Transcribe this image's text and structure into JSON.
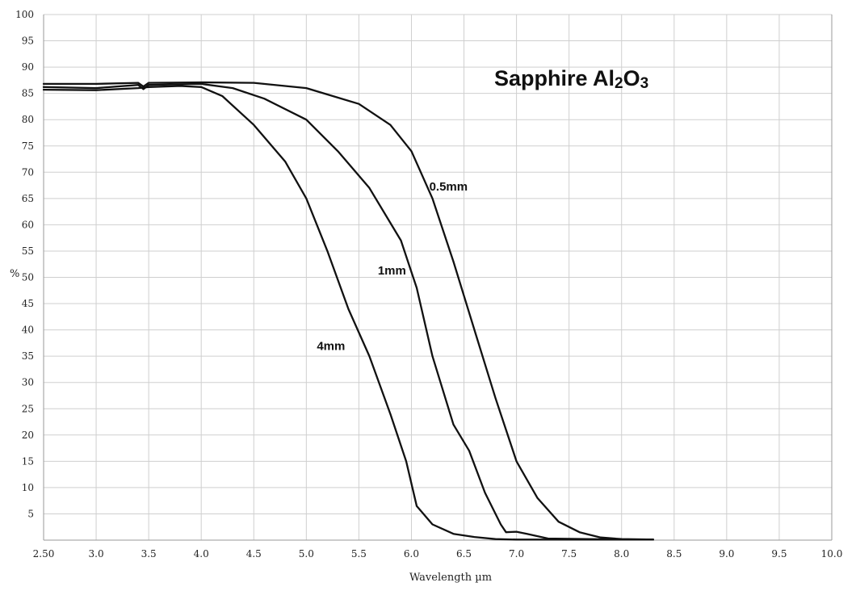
{
  "chart_data": {
    "type": "line",
    "title": "Sapphire Al2O3",
    "title_parts": {
      "main": "Sapphire Al",
      "sub1": "2",
      "mid": "O",
      "sub2": "3"
    },
    "xlabel": "Wavelength µm",
    "ylabel": "%",
    "xlim": [
      2.5,
      10.0
    ],
    "ylim": [
      0,
      100
    ],
    "grid": true,
    "legend": "none",
    "x_ticks": [
      "2.50",
      "3.0",
      "3.5",
      "4.0",
      "4.5",
      "5.0",
      "5.5",
      "6.0",
      "6.5",
      "7.0",
      "7.5",
      "8.0",
      "8.5",
      "9.0",
      "9.5",
      "10.0"
    ],
    "y_ticks": [
      "5",
      "10",
      "15",
      "20",
      "25",
      "30",
      "35",
      "40",
      "45",
      "50",
      "55",
      "60",
      "65",
      "70",
      "75",
      "80",
      "85",
      "90",
      "95",
      "100"
    ],
    "series": [
      {
        "name": "0.5mm",
        "points": [
          [
            2.5,
            86.8
          ],
          [
            3.0,
            86.8
          ],
          [
            3.4,
            87.0
          ],
          [
            3.45,
            86.3
          ],
          [
            3.5,
            87.0
          ],
          [
            4.0,
            87.1
          ],
          [
            4.5,
            87.0
          ],
          [
            5.0,
            86.0
          ],
          [
            5.5,
            83.0
          ],
          [
            5.8,
            79.0
          ],
          [
            6.0,
            74.0
          ],
          [
            6.2,
            65.0
          ],
          [
            6.4,
            53.0
          ],
          [
            6.6,
            40.0
          ],
          [
            6.8,
            27.0
          ],
          [
            7.0,
            15.0
          ],
          [
            7.2,
            8.0
          ],
          [
            7.4,
            3.5
          ],
          [
            7.6,
            1.5
          ],
          [
            7.8,
            0.5
          ],
          [
            8.0,
            0.2
          ],
          [
            8.3,
            0.1
          ]
        ]
      },
      {
        "name": "1mm",
        "points": [
          [
            2.5,
            86.2
          ],
          [
            3.0,
            86.0
          ],
          [
            3.4,
            86.6
          ],
          [
            3.45,
            85.8
          ],
          [
            3.5,
            86.6
          ],
          [
            4.0,
            86.8
          ],
          [
            4.3,
            86.0
          ],
          [
            4.6,
            84.0
          ],
          [
            5.0,
            80.0
          ],
          [
            5.3,
            74.0
          ],
          [
            5.6,
            67.0
          ],
          [
            5.9,
            57.0
          ],
          [
            6.05,
            48.0
          ],
          [
            6.2,
            35.0
          ],
          [
            6.4,
            22.0
          ],
          [
            6.55,
            17.0
          ],
          [
            6.7,
            9.0
          ],
          [
            6.85,
            3.0
          ],
          [
            6.9,
            1.5
          ],
          [
            7.0,
            1.6
          ],
          [
            7.1,
            1.2
          ],
          [
            7.3,
            0.3
          ],
          [
            8.0,
            0.1
          ],
          [
            8.3,
            0.1
          ]
        ]
      },
      {
        "name": "4mm",
        "points": [
          [
            2.5,
            85.7
          ],
          [
            3.0,
            85.6
          ],
          [
            3.4,
            86.0
          ],
          [
            3.5,
            86.2
          ],
          [
            3.8,
            86.4
          ],
          [
            4.0,
            86.2
          ],
          [
            4.2,
            84.5
          ],
          [
            4.5,
            79.0
          ],
          [
            4.8,
            72.0
          ],
          [
            5.0,
            65.0
          ],
          [
            5.2,
            55.0
          ],
          [
            5.4,
            44.0
          ],
          [
            5.6,
            35.0
          ],
          [
            5.8,
            24.0
          ],
          [
            5.95,
            15.0
          ],
          [
            6.05,
            6.5
          ],
          [
            6.2,
            3.0
          ],
          [
            6.4,
            1.2
          ],
          [
            6.6,
            0.6
          ],
          [
            6.8,
            0.2
          ],
          [
            7.0,
            0.1
          ],
          [
            8.3,
            0.1
          ]
        ]
      }
    ],
    "annotations": [
      {
        "text": "0.5mm",
        "x": 6.17,
        "y": 66.5,
        "series": "0.5mm"
      },
      {
        "text": "1mm",
        "x": 5.68,
        "y": 50.5,
        "series": "1mm"
      },
      {
        "text": "4mm",
        "x": 5.1,
        "y": 36.2,
        "series": "4mm"
      }
    ]
  }
}
